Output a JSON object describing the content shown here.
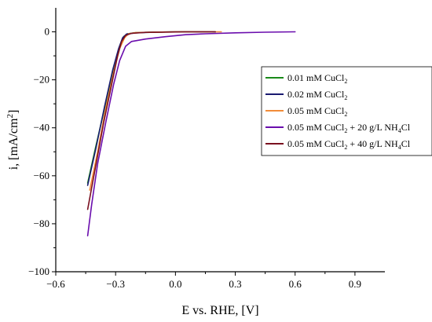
{
  "chart_data": {
    "type": "line",
    "xlabel": "E vs. RHE, [V]",
    "ylabel": "i, [mA/cm",
    "ylabel_sup": "2",
    "ylabel_end": "]",
    "xlim": [
      -0.6,
      1.05
    ],
    "ylim": [
      -100,
      10
    ],
    "xticks": [
      -0.6,
      -0.3,
      0.0,
      0.3,
      0.6,
      0.9
    ],
    "xtick_labels": [
      "−0.6",
      "−0.3",
      "0.0",
      "0.3",
      "0.6",
      "0.9"
    ],
    "yticks": [
      0,
      -20,
      -40,
      -60,
      -80,
      -100
    ],
    "ytick_labels": [
      "0",
      "−20",
      "−40",
      "−60",
      "−80",
      "−100"
    ],
    "legend_position": "right",
    "series": [
      {
        "name": "0.01 mM CuCl2",
        "label_parts": [
          "0.01 mM CuCl",
          "2",
          ""
        ],
        "color": "#1a8a1a",
        "x": [
          -0.44,
          -0.4,
          -0.35,
          -0.31,
          -0.28,
          -0.26,
          -0.24,
          -0.2,
          -0.1,
          0.0,
          0.1,
          0.2
        ],
        "y": [
          -63,
          -48,
          -30,
          -15,
          -6,
          -2,
          -0.8,
          -0.3,
          -0.1,
          0.0,
          0.0,
          0.0
        ]
      },
      {
        "name": "0.02 mM CuCl2",
        "label_parts": [
          "0.02 mM CuCl",
          "2",
          ""
        ],
        "color": "#1a1a70",
        "x": [
          -0.44,
          -0.4,
          -0.355,
          -0.315,
          -0.285,
          -0.265,
          -0.245,
          -0.2,
          -0.1,
          0.0,
          0.1,
          0.2
        ],
        "y": [
          -64,
          -49,
          -31,
          -16,
          -7,
          -2.5,
          -0.9,
          -0.4,
          -0.1,
          0.0,
          0.0,
          0.0
        ]
      },
      {
        "name": "0.05 mM CuCl2",
        "label_parts": [
          "0.05 mM CuCl",
          "2",
          ""
        ],
        "color": "#f28c3a",
        "x": [
          -0.43,
          -0.39,
          -0.35,
          -0.31,
          -0.28,
          -0.255,
          -0.235,
          -0.2,
          -0.1,
          0.0,
          0.1,
          0.23
        ],
        "y": [
          -66,
          -50,
          -32,
          -17,
          -7,
          -2.5,
          -0.8,
          -0.3,
          -0.1,
          0.0,
          0.0,
          0.0
        ]
      },
      {
        "name": "0.05 mM CuCl2 + 20 g/L NH4Cl",
        "label_parts": [
          "0.05 mM CuCl",
          "2",
          " + 20 g/L NH",
          "4",
          "Cl"
        ],
        "color": "#6a0dad",
        "x": [
          -0.44,
          -0.42,
          -0.39,
          -0.35,
          -0.31,
          -0.28,
          -0.25,
          -0.22,
          -0.15,
          -0.05,
          0.05,
          0.15,
          0.3,
          0.45,
          0.6
        ],
        "y": [
          -85,
          -72,
          -55,
          -38,
          -22,
          -12,
          -6,
          -4,
          -3,
          -2,
          -1.2,
          -0.8,
          -0.4,
          -0.15,
          0.0
        ]
      },
      {
        "name": "0.05 mM CuCl2 + 40 g/L NH4Cl",
        "label_parts": [
          "0.05 mM CuCl",
          "2",
          " + 40 g/L NH",
          "4",
          "Cl"
        ],
        "color": "#7a1020",
        "x": [
          -0.44,
          -0.4,
          -0.36,
          -0.32,
          -0.29,
          -0.27,
          -0.25,
          -0.22,
          -0.15,
          -0.05,
          0.05,
          0.2
        ],
        "y": [
          -74,
          -56,
          -38,
          -22,
          -10,
          -4,
          -1.5,
          -0.6,
          -0.2,
          -0.1,
          0.0,
          0.0
        ]
      }
    ]
  }
}
